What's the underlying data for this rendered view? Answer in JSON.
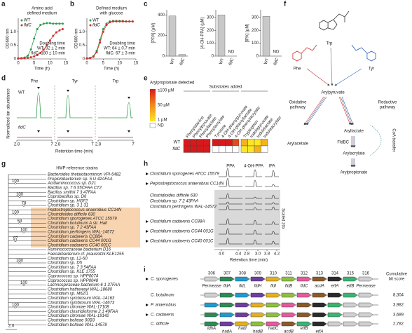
{
  "panel_labels": [
    "a",
    "b",
    "c",
    "d",
    "e",
    "f",
    "g",
    "h",
    "i"
  ],
  "chart_data": [
    {
      "type": "line",
      "title": [
        "Amino acid",
        "defined medium"
      ],
      "x": [
        0,
        1,
        2,
        3,
        4,
        5,
        6,
        7,
        8,
        9,
        10,
        11,
        12,
        13,
        14
      ],
      "series": [
        {
          "name": "WT",
          "color": "#2e9e4a",
          "values": [
            0.02,
            0.03,
            0.05,
            0.12,
            0.35,
            0.75,
            1.1,
            1.25,
            1.3,
            1.32,
            1.32,
            1.3,
            1.3,
            1.3,
            1.3
          ]
        },
        {
          "name": "fldC",
          "color": "#d62c2c",
          "values": [
            0.02,
            0.02,
            0.03,
            0.04,
            0.06,
            0.09,
            0.14,
            0.22,
            0.34,
            0.5,
            0.68,
            0.85,
            0.98,
            1.05,
            1.1
          ]
        }
      ],
      "xlim": [
        0,
        15
      ],
      "ylim": [
        0,
        1.5
      ],
      "xticks": [
        0,
        5,
        10,
        15
      ],
      "yticks": [
        0,
        0.5,
        {
          "value": 1,
          "label": "1.0"
        }
      ],
      "x_label": "Time (h)",
      "y_label": "OD600 nm",
      "annotations": [
        "Doubling time",
        "WT: 82 ± 2 min",
        "fldC: 180 ± 10 min"
      ]
    },
    {
      "type": "line",
      "title": [
        "Defined medium",
        "with glucose"
      ],
      "x": [
        0,
        1,
        2,
        3,
        4,
        5,
        6,
        7,
        8,
        9,
        10,
        11,
        12,
        13,
        14
      ],
      "series": [
        {
          "name": "WT",
          "color": "#2e9e4a",
          "values": [
            0.02,
            0.04,
            0.1,
            0.3,
            0.7,
            1.1,
            1.3,
            1.38,
            1.4,
            1.4,
            1.4,
            1.4,
            1.38,
            1.38,
            1.38
          ]
        },
        {
          "name": "fldC",
          "color": "#d62c2c",
          "values": [
            0.02,
            0.03,
            0.08,
            0.25,
            0.6,
            1.0,
            1.25,
            1.35,
            1.38,
            1.38,
            1.38,
            1.38,
            1.38,
            1.38,
            1.38
          ]
        }
      ],
      "xlim": [
        0,
        15
      ],
      "ylim": [
        0,
        1.5
      ],
      "xticks": [
        0,
        5,
        10,
        15
      ],
      "yticks": [
        0,
        0.5,
        {
          "value": 1,
          "label": "1.0"
        }
      ],
      "x_label": "Time (h)",
      "y_label": "OD600 nm",
      "annotations": [
        "Doubling time",
        "WT: 64 ± 0.7 min",
        "fldC: 67 ± 3 min"
      ]
    },
    {
      "type": "bar",
      "y_label": "[PPA] (μM)",
      "categories": [
        "WT",
        "fldC"
      ],
      "values": [
        390,
        15
      ],
      "color": "#c8c8c8",
      "ylim": [
        0,
        450
      ],
      "yticks": [
        0,
        200,
        400
      ]
    },
    {
      "type": "bar",
      "y_label": "[4-OH-PPA] (μM)",
      "categories": [
        "WT",
        "fldC"
      ],
      "values": [
        320,
        null
      ],
      "value_labels": [
        null,
        "ND"
      ],
      "color": "#c8c8c8",
      "ylim": [
        0,
        360
      ],
      "yticks": [
        0,
        100,
        200,
        300
      ]
    },
    {
      "type": "bar",
      "y_label": "[IPA] (μM)",
      "categories": [
        "WT",
        "fldC"
      ],
      "values": [
        310,
        null
      ],
      "value_labels": [
        null,
        "ND"
      ],
      "color": "#c8c8c8",
      "ylim": [
        0,
        360
      ],
      "yticks": [
        0,
        100,
        200,
        300
      ]
    }
  ],
  "panel_d": {
    "columns": [
      "Phe",
      "Tyr",
      "Trp"
    ],
    "rows": [
      "WT",
      "fldC"
    ],
    "xticks": [
      2.8,
      7
    ],
    "x_label": "Retention time (min)",
    "y_label": "Normalized ion abundance"
  },
  "panel_e": {
    "legend_title": "Arylpropionate detected",
    "legend_labels": [
      "≥100 µM",
      "50 µM",
      "1 µM",
      "ND"
    ],
    "header": "Substrates added",
    "columns": [
      "Phenylalanine",
      "Phenylpyruvate",
      "Phenyllactate",
      "Phenylacrylate",
      "Tyrosine",
      "4-OH-phenylpyruvate",
      "4-OH-phenyllactate",
      "4-OH-phenylacrylate",
      "Tryptophan",
      "Indolepyruvate",
      "Indolelactate",
      "Indoleacrylate"
    ],
    "rows": [
      "WT",
      "fldC"
    ],
    "cells": [
      [
        "#d7191c",
        "#d7191c",
        "#d7191c",
        "#d7191c",
        "#d7191c",
        "#d7191c",
        "#d7191c",
        "#e34a1c",
        "#f6b21a",
        "#fde725",
        "#fde725",
        "#f6b21a"
      ],
      [
        "#d7191c",
        "#d7191c",
        "#d7191c",
        "#d7191c",
        "#ffffff",
        "#ffffff",
        "#ffffff",
        "#ffffff",
        "#fde725",
        "#fde725",
        "#f6b21a",
        "#ffffff"
      ]
    ]
  },
  "panel_f": {
    "trp": "Trp",
    "phe": "Phe",
    "tyr": "Tyr",
    "arylpyruvate": "Arylpyruvate",
    "oxidative": [
      "Oxidative",
      "pathway"
    ],
    "reductive": [
      "Reductive",
      "pathway"
    ],
    "arylacetate": "Arylacetate",
    "aryllactate": "Aryllactate",
    "fldbc": "FldBC",
    "arylacrylate": "Arylacrylate",
    "coa": "CoA transfer",
    "arylpropionate": "Arylpropionate"
  },
  "panel_g": {
    "title": "HMP reference strains",
    "strains": [
      "Bacteroides thetaiotaomicron VPI-5482",
      "Propionibacterium sp. 5 U 42AFAA",
      "Acidaminococcus sp. D21",
      "Bacillus sp. 7 6 55CFAA CT2",
      "Bacillus smithii 7 3 47FAA",
      "Coprobacillus sp. D6",
      "Clostridium sp. HGF2",
      "Clostridium sp. 3 1 31",
      "Peptostreptococcus anaerobius CC14N",
      "Clostridioides difficile 630",
      "Clostridium sporogenes ATCC 15579",
      "Clostridium botulinum A str. Hall",
      "Clostridium sp. 7 2 43FAA",
      "Clostridium perfringens WAL-14572",
      "Clostridium cadaveris CC88A",
      "Clostridium cadaveris CC44 001G",
      "Clostridium cadaveris CC40 001C",
      "Ruminococcaceae bacterium D16",
      "Faecalibacterium cf. prausnitzii KLE1255",
      "Clostridium sp. L2-50",
      "Clostridium sp. D5",
      "Clostridium sp. 7 3 54FAA",
      "Clostridium sp. KLE 1755",
      "Coprococcus sp. HPP0074",
      "Coprococcus sp. HPP0048",
      "Lachnospiraceae bacterium 6 1 37FAA",
      "Clostridium hathewayi WAL-18680",
      "Clostridium sp. M62/1",
      "Clostridium symbiosum WAL-14163",
      "Clostridium symbiosum WAL-14673",
      "Clostridium citroniae WAL-17108",
      "Clostridium clostridioforme 2 1 49FAA",
      "Clostridium citroniae WAL-19142",
      "Clostridium bolteae 90B3",
      "Clostridium bolteae WAL-14578"
    ],
    "bootstrap": [
      100,
      100,
      78,
      100,
      53,
      100,
      97,
      100,
      100,
      100
    ],
    "scale": "2.0"
  },
  "panel_h": {
    "columns": [
      "PPA",
      "4-OH-PPA",
      "IPA"
    ],
    "strains": [
      "Clostridium sporogenes ATCC 15579",
      "Peptostreptococcus anaerobius CC14N",
      "Clostridioides difficile 630",
      "Clostridium sp. 7 2 43FAA",
      "Clostridium perfringens WAL-14572",
      "Clostridium cadaveris CC88A",
      "Clostridium cadaveris CC44 001G",
      "Clostridium cadaveris CC40 001C"
    ],
    "scaled": "Scaled 20x",
    "xtick_labels": [
      "4.0",
      "4.4",
      "2.8",
      "3.0",
      "3.8",
      "4.2"
    ],
    "x_label": "Retention time (min)"
  },
  "panel_i": {
    "gene_numbers": [
      306,
      307,
      308,
      309,
      310,
      311,
      312,
      313,
      314,
      315,
      316
    ],
    "gene_names": [
      "Permease",
      "fldA",
      "fldL",
      "fldH",
      "fldI",
      "fldB",
      "fldC",
      "acdA",
      "etfA",
      "etfB",
      "Permease"
    ],
    "organisms": [
      "C. sporogenes",
      "C. botulinum",
      "P. anaerobius",
      "C. cadaveris",
      "C. difficile"
    ],
    "bit_title": [
      "Cumulative",
      "bit score"
    ],
    "bit_scores": [
      null,
      "8,304",
      "3,982",
      "3,689",
      "2,782"
    ],
    "difficile_genes": [
      "ldhA",
      "hadA",
      "hadI",
      "hadB",
      "hadC",
      "acdB",
      "etfB",
      "etfA"
    ]
  }
}
